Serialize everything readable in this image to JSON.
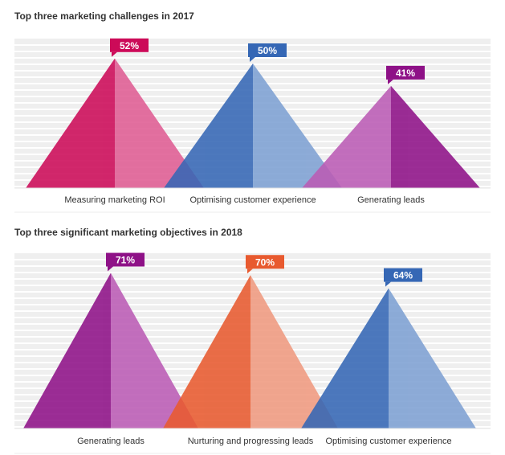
{
  "chart_data": [
    {
      "type": "area",
      "title": "Top three marketing challenges in 2017",
      "categories": [
        "Measuring marketing ROI",
        "Optimising customer experience",
        "Generating leads"
      ],
      "values": [
        52,
        50,
        41
      ],
      "value_labels": [
        "52%",
        "50%",
        "41%"
      ],
      "colors": [
        {
          "left": "#cc0a58",
          "right": "#e05d93",
          "badge": "#cc0a58"
        },
        {
          "left": "#3567b5",
          "right": "#7ea1d3",
          "badge": "#3567b5"
        },
        {
          "left": "#bb5cb5",
          "right": "#8e1187",
          "badge": "#8e1187"
        }
      ],
      "ylim": [
        0,
        60
      ],
      "grid": true
    },
    {
      "type": "area",
      "title": "Top three significant marketing objectives in 2018",
      "categories": [
        "Generating leads",
        "Nurturing and progressing leads",
        "Optimising customer experience"
      ],
      "values": [
        71,
        70,
        64
      ],
      "value_labels": [
        "71%",
        "70%",
        "64%"
      ],
      "colors": [
        {
          "left": "#8e1187",
          "right": "#bb5cb5",
          "badge": "#8e1187"
        },
        {
          "left": "#e85a2f",
          "right": "#f09a80",
          "badge": "#e85a2f"
        },
        {
          "left": "#3567b5",
          "right": "#7ea1d3",
          "badge": "#3567b5"
        }
      ],
      "ylim": [
        0,
        80
      ],
      "grid": true
    }
  ]
}
